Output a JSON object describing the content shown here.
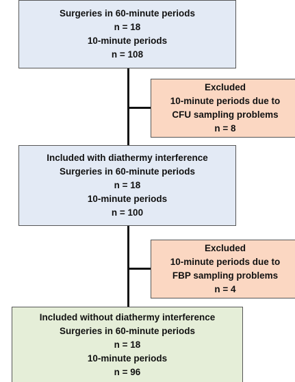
{
  "nodes": [
    {
      "lines": [
        "Surgeries in 60-minute periods",
        "n = 18",
        "10-minute periods",
        "n = 108"
      ]
    },
    {
      "lines": [
        "Excluded",
        "10-minute periods due to",
        "CFU sampling problems",
        "n = 8"
      ]
    },
    {
      "lines": [
        "Included with diathermy interference",
        "Surgeries in 60-minute periods",
        "n = 18",
        "10-minute periods",
        "n = 100"
      ]
    },
    {
      "lines": [
        "Excluded",
        "10-minute periods due to",
        "FBP sampling problems",
        "n = 4"
      ]
    },
    {
      "lines": [
        "Included without diathermy interference",
        "Surgeries in 60-minute periods",
        "n = 18",
        "10-minute periods",
        "n = 96"
      ]
    }
  ]
}
